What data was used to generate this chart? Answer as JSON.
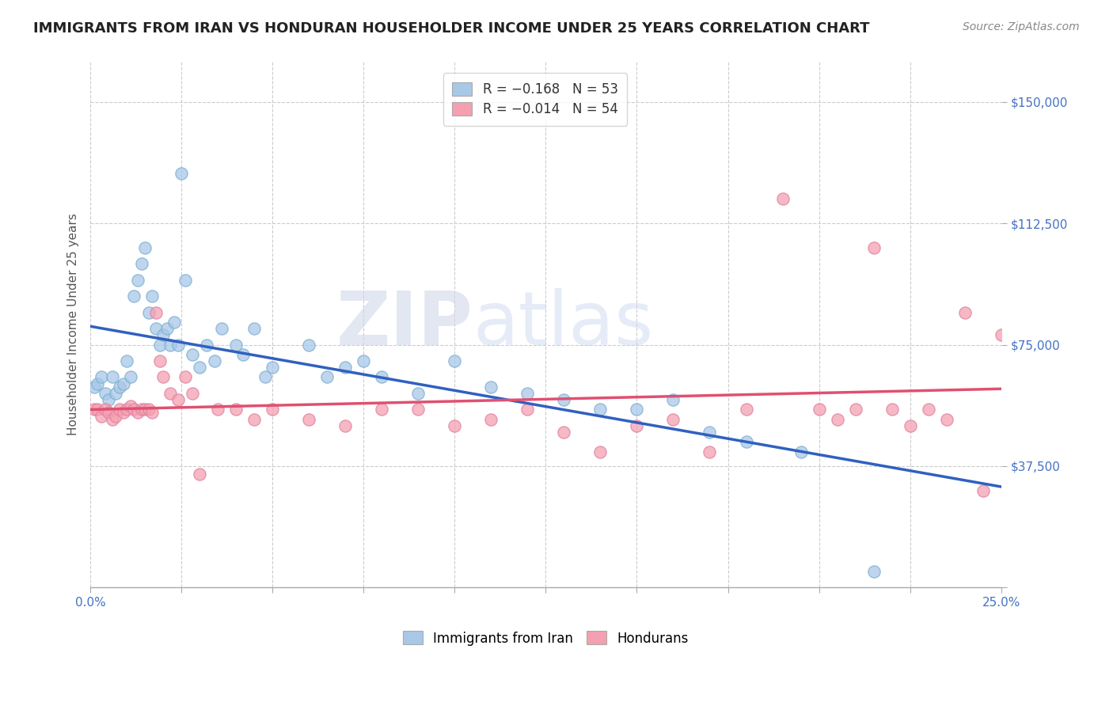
{
  "title": "IMMIGRANTS FROM IRAN VS HONDURAN HOUSEHOLDER INCOME UNDER 25 YEARS CORRELATION CHART",
  "source": "Source: ZipAtlas.com",
  "ylabel": "Householder Income Under 25 years",
  "xlim": [
    0.0,
    0.25
  ],
  "ylim": [
    0,
    162500
  ],
  "xticks": [
    0.0,
    0.025,
    0.05,
    0.075,
    0.1,
    0.125,
    0.15,
    0.175,
    0.2,
    0.225,
    0.25
  ],
  "xtick_labels": [
    "0.0%",
    "",
    "",
    "",
    "",
    "",
    "",
    "",
    "",
    "",
    "25.0%"
  ],
  "ytick_values": [
    0,
    37500,
    75000,
    112500,
    150000
  ],
  "ytick_labels": [
    "",
    "$37,500",
    "$75,000",
    "$112,500",
    "$150,000"
  ],
  "legend_r1": "R = −0.168",
  "legend_n1": "N = 53",
  "legend_r2": "R = −0.014",
  "legend_n2": "N = 54",
  "color_iran": "#a8c8e8",
  "color_honduran": "#f4a0b0",
  "color_line_iran": "#3060c0",
  "color_line_honduran": "#e05070",
  "iran_x": [
    0.001,
    0.002,
    0.003,
    0.004,
    0.005,
    0.006,
    0.007,
    0.008,
    0.009,
    0.01,
    0.011,
    0.012,
    0.013,
    0.014,
    0.015,
    0.016,
    0.017,
    0.018,
    0.019,
    0.02,
    0.021,
    0.022,
    0.023,
    0.024,
    0.025,
    0.026,
    0.028,
    0.03,
    0.032,
    0.034,
    0.036,
    0.04,
    0.042,
    0.045,
    0.048,
    0.05,
    0.06,
    0.065,
    0.07,
    0.075,
    0.08,
    0.09,
    0.1,
    0.11,
    0.12,
    0.13,
    0.14,
    0.15,
    0.16,
    0.17,
    0.18,
    0.195,
    0.215
  ],
  "iran_y": [
    62000,
    63000,
    65000,
    60000,
    58000,
    65000,
    60000,
    62000,
    63000,
    70000,
    65000,
    90000,
    95000,
    100000,
    105000,
    85000,
    90000,
    80000,
    75000,
    78000,
    80000,
    75000,
    82000,
    75000,
    128000,
    95000,
    72000,
    68000,
    75000,
    70000,
    80000,
    75000,
    72000,
    80000,
    65000,
    68000,
    75000,
    65000,
    68000,
    70000,
    65000,
    60000,
    70000,
    62000,
    60000,
    58000,
    55000,
    55000,
    58000,
    48000,
    45000,
    42000,
    5000
  ],
  "honduran_x": [
    0.001,
    0.002,
    0.003,
    0.004,
    0.005,
    0.006,
    0.007,
    0.008,
    0.009,
    0.01,
    0.011,
    0.012,
    0.013,
    0.014,
    0.015,
    0.016,
    0.017,
    0.018,
    0.019,
    0.02,
    0.022,
    0.024,
    0.026,
    0.028,
    0.03,
    0.035,
    0.04,
    0.045,
    0.05,
    0.06,
    0.07,
    0.08,
    0.09,
    0.1,
    0.11,
    0.12,
    0.13,
    0.14,
    0.15,
    0.16,
    0.17,
    0.18,
    0.19,
    0.2,
    0.205,
    0.21,
    0.215,
    0.22,
    0.225,
    0.23,
    0.235,
    0.24,
    0.245,
    0.25
  ],
  "honduran_y": [
    55000,
    55000,
    53000,
    55000,
    54000,
    52000,
    53000,
    55000,
    54000,
    55000,
    56000,
    55000,
    54000,
    55000,
    55000,
    55000,
    54000,
    85000,
    70000,
    65000,
    60000,
    58000,
    65000,
    60000,
    35000,
    55000,
    55000,
    52000,
    55000,
    52000,
    50000,
    55000,
    55000,
    50000,
    52000,
    55000,
    48000,
    42000,
    50000,
    52000,
    42000,
    55000,
    120000,
    55000,
    52000,
    55000,
    105000,
    55000,
    50000,
    55000,
    52000,
    85000,
    30000,
    78000
  ]
}
